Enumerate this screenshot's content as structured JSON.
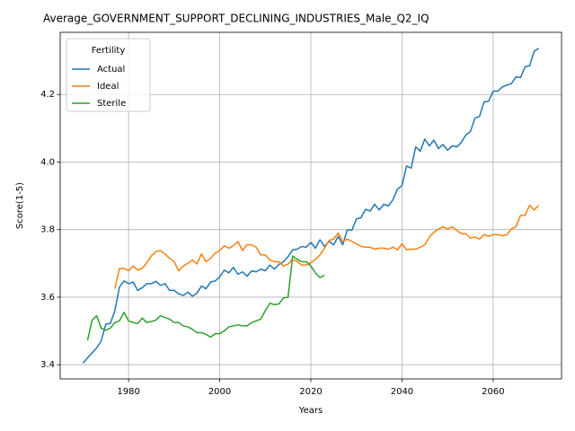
{
  "chart_data": {
    "type": "line",
    "title": "Average_GOVERNMENT_SUPPORT_DECLINING_INDUSTRIES_Male_Q2_IQ",
    "x_label": "Years",
    "y_label": "Score(1-5)",
    "legend_title": "Fertility",
    "legend_position": "upper left",
    "grid": true,
    "x": [
      1970,
      1971,
      1972,
      1973,
      1974,
      1975,
      1976,
      1977,
      1978,
      1979,
      1980,
      1981,
      1982,
      1983,
      1984,
      1985,
      1986,
      1987,
      1988,
      1989,
      1990,
      1991,
      1992,
      1993,
      1994,
      1995,
      1996,
      1997,
      1998,
      1999,
      2000,
      2001,
      2002,
      2003,
      2004,
      2005,
      2006,
      2007,
      2008,
      2009,
      2010,
      2011,
      2012,
      2013,
      2014,
      2015,
      2016,
      2017,
      2018,
      2019,
      2020,
      2021,
      2022,
      2023,
      2024,
      2025,
      2026,
      2027,
      2028,
      2029,
      2030,
      2031,
      2032,
      2033,
      2034,
      2035,
      2036,
      2037,
      2038,
      2039,
      2040,
      2041,
      2042,
      2043,
      2044,
      2045,
      2046,
      2047,
      2048,
      2049,
      2050,
      2051,
      2052,
      2053,
      2054,
      2055,
      2056,
      2057,
      2058,
      2059,
      2060,
      2061,
      2062,
      2063,
      2064,
      2065,
      2066,
      2067,
      2068,
      2069,
      2070
    ],
    "xlim": [
      1965,
      2075
    ],
    "xticks": [
      1980,
      2000,
      2020,
      2040,
      2060
    ],
    "ylim": [
      3.358,
      4.384
    ],
    "yticks": [
      3.4,
      3.6,
      3.8,
      {
        "value": 4,
        "label": "4.0"
      },
      4.2
    ],
    "series": [
      {
        "name": "Actual",
        "color": "#1f77b4",
        "values": [
          3.405,
          3.42,
          3.435,
          3.45,
          3.47,
          3.52,
          3.522,
          3.56,
          3.63,
          3.648,
          3.64,
          3.645,
          3.62,
          3.628,
          3.64,
          3.64,
          3.647,
          3.635,
          3.64,
          3.62,
          3.62,
          3.61,
          3.605,
          3.615,
          3.603,
          3.612,
          3.633,
          3.625,
          3.645,
          3.648,
          3.66,
          3.68,
          3.672,
          3.688,
          3.668,
          3.675,
          3.662,
          3.678,
          3.675,
          3.683,
          3.678,
          3.695,
          3.683,
          3.697,
          3.705,
          3.72,
          3.74,
          3.742,
          3.75,
          3.748,
          3.762,
          3.745,
          3.77,
          3.75,
          3.765,
          3.755,
          3.78,
          3.755,
          3.8,
          3.798,
          3.832,
          3.835,
          3.86,
          3.855,
          3.875,
          3.858,
          3.875,
          3.87,
          3.888,
          3.92,
          3.93,
          3.988,
          3.982,
          4.045,
          4.032,
          4.068,
          4.048,
          4.065,
          4.04,
          4.052,
          4.035,
          4.048,
          4.045,
          4.058,
          4.08,
          4.09,
          4.13,
          4.135,
          4.178,
          4.18,
          4.21,
          4.21,
          4.222,
          4.228,
          4.232,
          4.252,
          4.25,
          4.282,
          4.285,
          4.328,
          4.337
        ]
      },
      {
        "name": "Ideal",
        "color": "#ff7f0e",
        "values": [
          null,
          null,
          null,
          null,
          null,
          null,
          null,
          3.625,
          3.685,
          3.685,
          3.678,
          3.692,
          3.68,
          3.685,
          3.702,
          3.722,
          3.735,
          3.738,
          3.728,
          3.715,
          3.705,
          3.678,
          3.692,
          3.7,
          3.71,
          3.698,
          3.728,
          3.705,
          3.715,
          3.73,
          3.738,
          3.752,
          3.745,
          3.752,
          3.765,
          3.738,
          3.755,
          3.755,
          3.748,
          3.725,
          3.725,
          3.71,
          3.705,
          3.705,
          3.692,
          3.698,
          3.712,
          3.705,
          3.695,
          3.695,
          3.702,
          3.712,
          3.725,
          3.745,
          3.768,
          3.772,
          3.79,
          3.765,
          3.772,
          3.765,
          3.758,
          3.75,
          3.748,
          3.748,
          3.742,
          3.745,
          3.745,
          3.742,
          3.748,
          3.74,
          3.758,
          3.74,
          3.742,
          3.742,
          3.748,
          3.755,
          3.778,
          3.792,
          3.802,
          3.808,
          3.802,
          3.808,
          3.798,
          3.788,
          3.788,
          3.775,
          3.778,
          3.772,
          3.785,
          3.78,
          3.785,
          3.785,
          3.782,
          3.785,
          3.802,
          3.808,
          3.842,
          3.842,
          3.872,
          3.858,
          3.872
        ]
      },
      {
        "name": "Sterile",
        "color": "#2ca02c",
        "values": [
          null,
          3.472,
          3.532,
          3.545,
          3.508,
          3.502,
          3.508,
          3.525,
          3.53,
          3.555,
          3.53,
          3.525,
          3.522,
          3.538,
          3.525,
          3.528,
          3.532,
          3.545,
          3.54,
          3.535,
          3.525,
          3.525,
          3.515,
          3.512,
          3.505,
          3.495,
          3.495,
          3.49,
          3.482,
          3.492,
          3.492,
          3.5,
          3.512,
          3.515,
          3.518,
          3.515,
          3.515,
          3.525,
          3.53,
          3.535,
          3.56,
          3.582,
          3.578,
          3.58,
          3.598,
          3.6,
          3.722,
          3.712,
          3.705,
          3.705,
          3.692,
          3.672,
          3.658,
          3.665,
          null,
          null,
          null,
          null,
          null,
          null,
          null,
          null,
          null,
          null,
          null,
          null,
          null,
          null,
          null,
          null,
          null,
          null,
          null,
          null,
          null,
          null,
          null,
          null,
          null,
          null,
          null,
          null,
          null,
          null,
          null,
          null,
          null,
          null,
          null,
          null,
          null,
          null,
          null,
          null,
          null,
          null,
          null,
          null,
          null,
          null,
          null
        ]
      }
    ]
  }
}
